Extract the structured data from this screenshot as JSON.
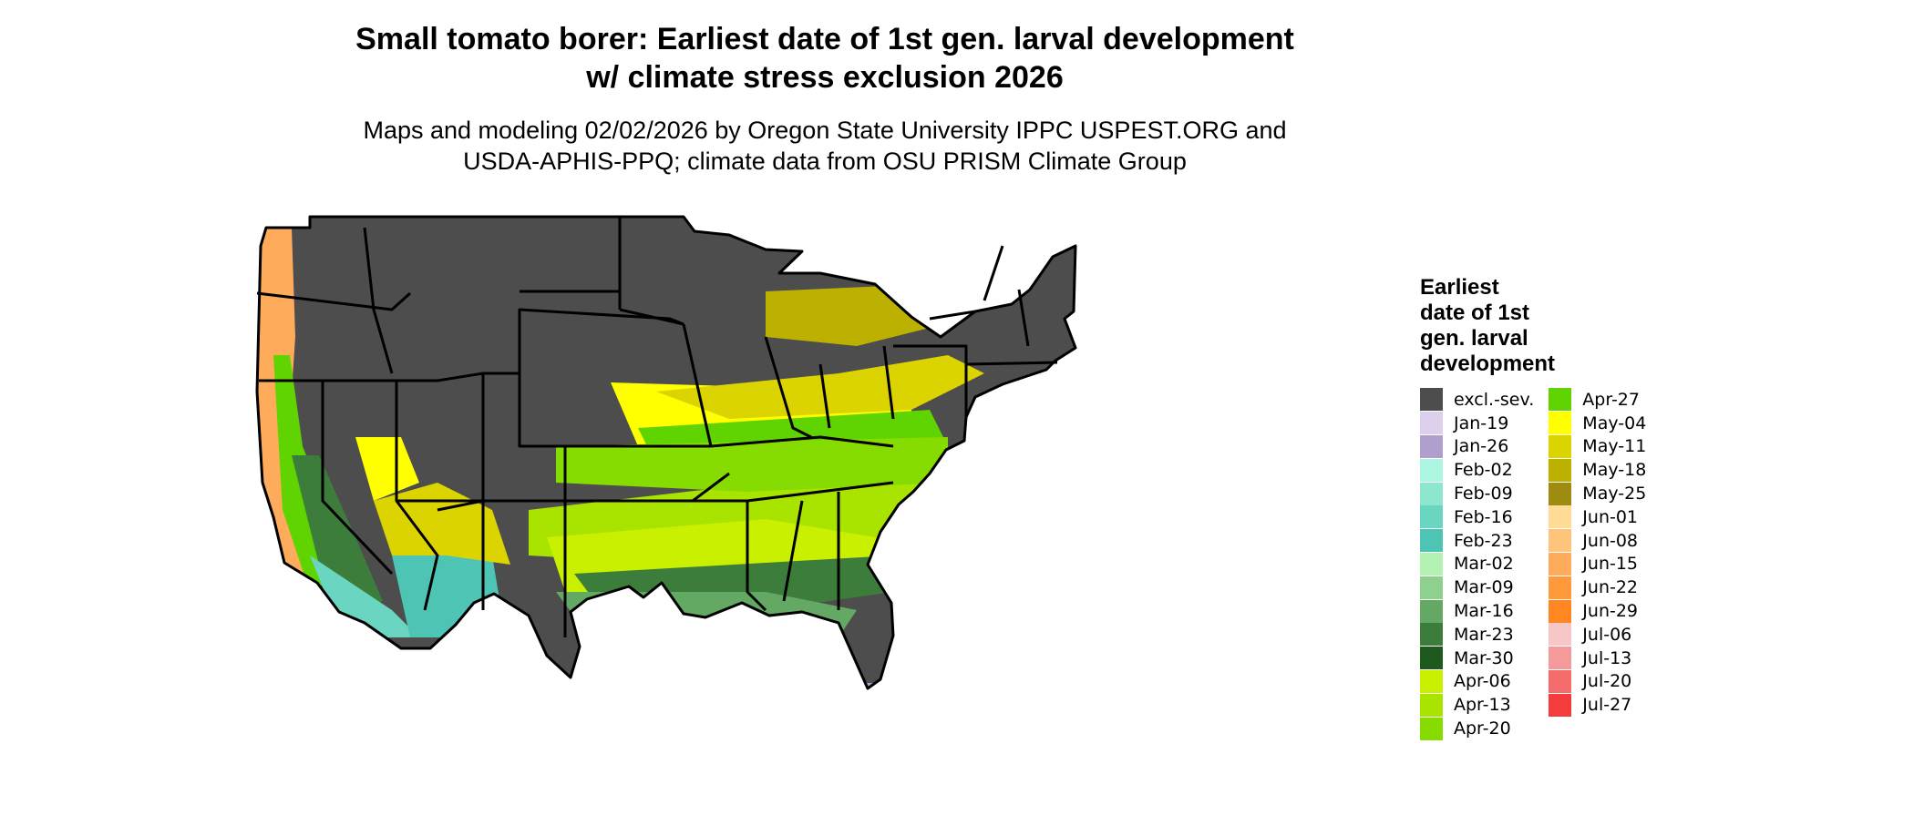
{
  "title_line1": "Small tomato borer: Earliest date of 1st gen. larval development",
  "title_line2": "w/ climate stress exclusion 2026",
  "subtitle_line1": "Maps and modeling 02/02/2026 by Oregon State University IPPC USPEST.ORG and",
  "subtitle_line2": "USDA-APHIS-PPQ; climate data from OSU PRISM Climate Group",
  "legend": {
    "title": "Earliest\ndate of 1st\ngen. larval\ndevelopment",
    "items": [
      {
        "label": "excl.-sev.",
        "color": "#4d4d4d"
      },
      {
        "label": "Jan-19",
        "color": "#dcd0ec"
      },
      {
        "label": "Jan-26",
        "color": "#b09fcc"
      },
      {
        "label": "Feb-02",
        "color": "#abf5e1"
      },
      {
        "label": "Feb-09",
        "color": "#8ee6cf"
      },
      {
        "label": "Feb-16",
        "color": "#6ad6c2"
      },
      {
        "label": "Feb-23",
        "color": "#4ec4b5"
      },
      {
        "label": "Mar-02",
        "color": "#b4f2b4"
      },
      {
        "label": "Mar-09",
        "color": "#8ed18e"
      },
      {
        "label": "Mar-16",
        "color": "#63a863"
      },
      {
        "label": "Mar-23",
        "color": "#3c7d3c"
      },
      {
        "label": "Mar-30",
        "color": "#1e5a1e"
      },
      {
        "label": "Apr-06",
        "color": "#c8f000"
      },
      {
        "label": "Apr-13",
        "color": "#a8e400"
      },
      {
        "label": "Apr-20",
        "color": "#86dc00"
      },
      {
        "label": "Apr-27",
        "color": "#5fd400"
      },
      {
        "label": "May-04",
        "color": "#ffff00"
      },
      {
        "label": "May-11",
        "color": "#dcd400"
      },
      {
        "label": "May-18",
        "color": "#bcb000"
      },
      {
        "label": "May-25",
        "color": "#9e8c10"
      },
      {
        "label": "Jun-01",
        "color": "#ffdc96"
      },
      {
        "label": "Jun-08",
        "color": "#ffc47c"
      },
      {
        "label": "Jun-15",
        "color": "#ffab5c"
      },
      {
        "label": "Jun-22",
        "color": "#ff9a3c"
      },
      {
        "label": "Jun-29",
        "color": "#ff8620"
      },
      {
        "label": "Jul-06",
        "color": "#f7c6c6"
      },
      {
        "label": "Jul-13",
        "color": "#f49a9a"
      },
      {
        "label": "Jul-20",
        "color": "#f46c6c"
      },
      {
        "label": "Jul-27",
        "color": "#f43c3c"
      }
    ]
  }
}
